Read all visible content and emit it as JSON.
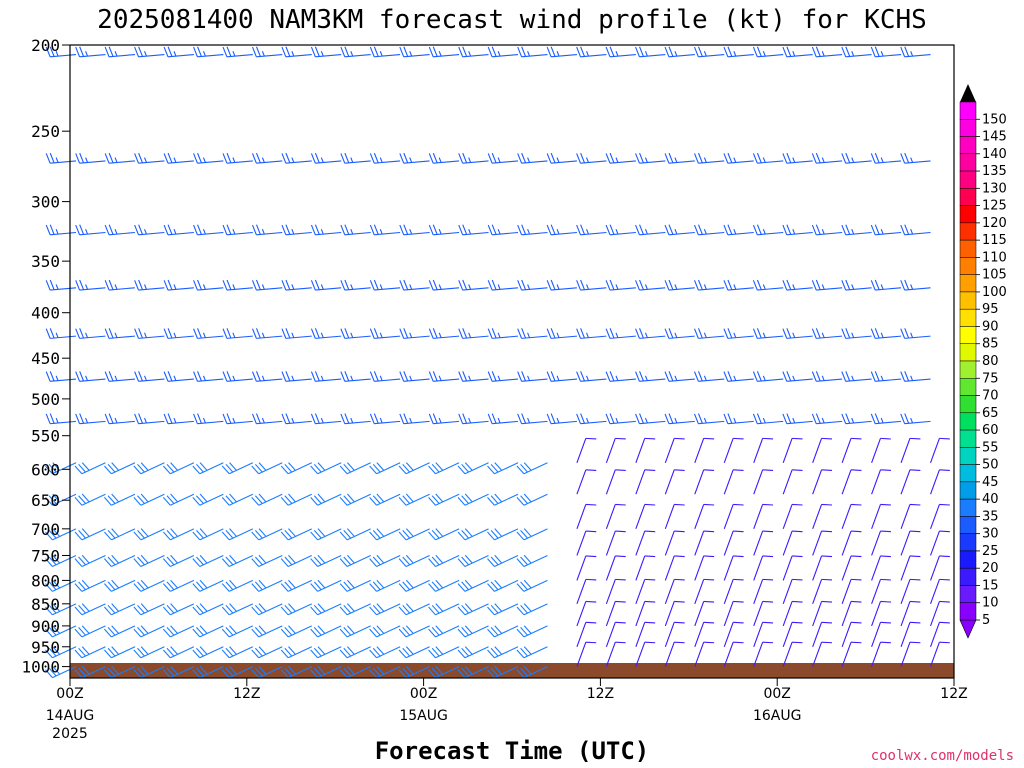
{
  "chart_data": {
    "type": "wind-barb-profile",
    "title": "2025081400 NAM3KM forecast wind profile (kt) for KCHS",
    "xlabel": "Forecast Time (UTC)",
    "ylabel": "",
    "y_axis": {
      "scale": "log",
      "inverted": true,
      "range": [
        200,
        1030
      ],
      "ticks": [
        200,
        250,
        300,
        350,
        400,
        450,
        500,
        550,
        600,
        650,
        700,
        750,
        800,
        850,
        900,
        950,
        1000
      ]
    },
    "x_axis": {
      "range_hours": [
        0,
        60
      ],
      "ticks": [
        {
          "hour": 0,
          "label": "00Z",
          "sub1": "14AUG",
          "sub2": "2025"
        },
        {
          "hour": 12,
          "label": "12Z",
          "sub1": "",
          "sub2": ""
        },
        {
          "hour": 24,
          "label": "00Z",
          "sub1": "15AUG",
          "sub2": ""
        },
        {
          "hour": 36,
          "label": "12Z",
          "sub1": "",
          "sub2": ""
        },
        {
          "hour": 48,
          "label": "00Z",
          "sub1": "16AUG",
          "sub2": ""
        },
        {
          "hour": 60,
          "label": "12Z",
          "sub1": "",
          "sub2": ""
        }
      ]
    },
    "colorbar": {
      "units": "kt",
      "ticks": [
        5,
        10,
        15,
        20,
        25,
        30,
        35,
        40,
        45,
        50,
        55,
        60,
        65,
        70,
        75,
        80,
        85,
        90,
        95,
        100,
        105,
        110,
        115,
        120,
        125,
        130,
        135,
        140,
        145,
        150
      ],
      "colors": [
        "#8a00ff",
        "#6a1aff",
        "#3b1aff",
        "#1a1aff",
        "#1a3bff",
        "#1a5cff",
        "#1a7dff",
        "#009ee8",
        "#00bde0",
        "#00d4c0",
        "#00e090",
        "#00e060",
        "#30e030",
        "#60e830",
        "#a0f030",
        "#e0f800",
        "#ffff00",
        "#ffe000",
        "#ffc000",
        "#ffa000",
        "#ff8000",
        "#ff6000",
        "#ff3000",
        "#ff0000",
        "#ff0050",
        "#ff0080",
        "#ff00a0",
        "#ff00c0",
        "#ff00e0",
        "#ff00ff"
      ],
      "bottom_arrow_color": "#8a00ff",
      "top_arrow_color": "#000000"
    },
    "barb_grid": {
      "time_step_hours": 2,
      "upper_levels_hpa": [
        205,
        270,
        325,
        375,
        425,
        475,
        530
      ],
      "lower_levels_hpa": [
        590,
        640,
        700,
        750,
        800,
        850,
        900,
        950,
        1000
      ],
      "regimes": [
        {
          "region": "upper-levels",
          "direction_from_deg": 265,
          "speed_kt": 25
        },
        {
          "region": "mid-levels-day-1",
          "direction_from_deg": 245,
          "speed_kt": 30
        },
        {
          "region": "low-levels-day-2-3",
          "direction_from_deg": 20,
          "speed_kt": 10
        }
      ]
    },
    "ground_color": "#8b4a2b"
  },
  "credit": "coolwx.com/models"
}
